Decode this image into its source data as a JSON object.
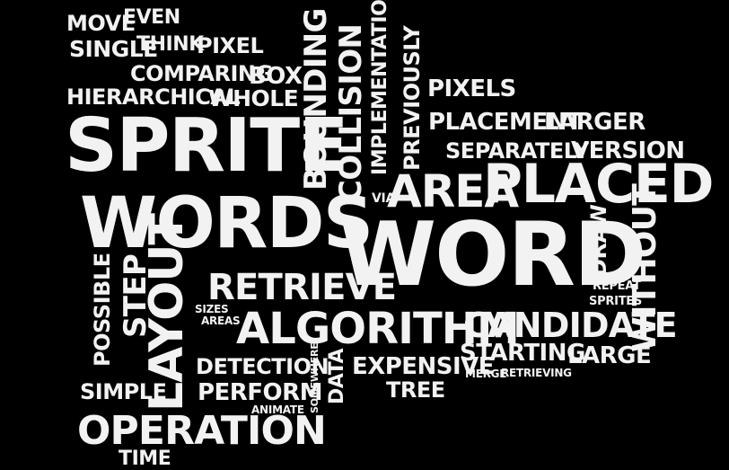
{
  "colors": {
    "background": "#000000",
    "text": "#f2f2f2"
  },
  "words": [
    {
      "text": "MOVE"
    },
    {
      "text": "EVEN"
    },
    {
      "text": "SINGLE"
    },
    {
      "text": "THINK"
    },
    {
      "text": "PIXEL"
    },
    {
      "text": "COMPARING"
    },
    {
      "text": "BOX"
    },
    {
      "text": "HIERARCHICAL"
    },
    {
      "text": "WHOLE"
    },
    {
      "text": "SPRITE"
    },
    {
      "text": "BOUNDING"
    },
    {
      "text": "COLLISION"
    },
    {
      "text": "IMPLEMENTATION"
    },
    {
      "text": "PREVIOUSLY"
    },
    {
      "text": "PIXELS"
    },
    {
      "text": "PLACEMENT"
    },
    {
      "text": "LARGER"
    },
    {
      "text": "SEPARATELY"
    },
    {
      "text": "VERSION"
    },
    {
      "text": "VIA"
    },
    {
      "text": "AREA"
    },
    {
      "text": "PLACED"
    },
    {
      "text": "WORDS"
    },
    {
      "text": "WORD"
    },
    {
      "text": "DRAW"
    },
    {
      "text": "WITHOUT"
    },
    {
      "text": "REPEAT"
    },
    {
      "text": "SPRITES"
    },
    {
      "text": "RETRIEVE"
    },
    {
      "text": "POSSIBLE"
    },
    {
      "text": "STEP"
    },
    {
      "text": "LAYOUT"
    },
    {
      "text": "SIZES"
    },
    {
      "text": "AREAS"
    },
    {
      "text": "ALGORITHM"
    },
    {
      "text": "CANDIDATE"
    },
    {
      "text": "STARTING"
    },
    {
      "text": "LARGE"
    },
    {
      "text": "DETECTION"
    },
    {
      "text": "SOMEWHERE"
    },
    {
      "text": "DATA"
    },
    {
      "text": "EXPENSIVE"
    },
    {
      "text": "MERGE"
    },
    {
      "text": "RETRIEVING"
    },
    {
      "text": "SIMPLE"
    },
    {
      "text": "PERFORM"
    },
    {
      "text": "TREE"
    },
    {
      "text": "ANIMATE"
    },
    {
      "text": "OPERATION"
    },
    {
      "text": "TIME"
    }
  ]
}
